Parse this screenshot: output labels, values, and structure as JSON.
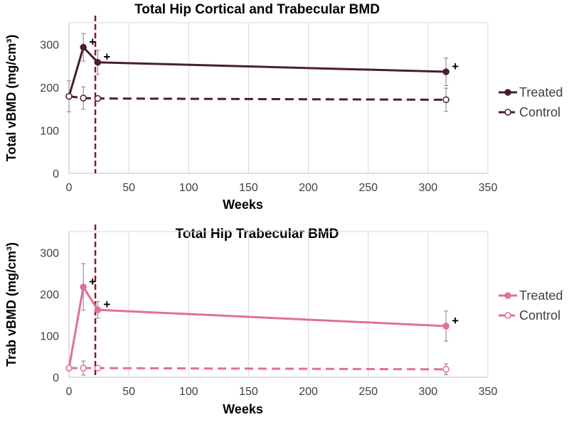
{
  "chart_data": [
    {
      "type": "line",
      "title": "Total Hip Cortical and Trabecular BMD",
      "xlabel": "Weeks",
      "ylabel": "Total vBMD (mg/cm³)",
      "xlim": [
        0,
        350
      ],
      "ylim": [
        0,
        350
      ],
      "xticks": [
        0,
        50,
        100,
        150,
        200,
        250,
        300,
        350
      ],
      "yticks": [
        0,
        100,
        200,
        300
      ],
      "vline_x": 22,
      "color": "#4a1f2a",
      "series": [
        {
          "name": "Treated",
          "style": "solid",
          "filled": true,
          "x": [
            0,
            12,
            24,
            315
          ],
          "y": [
            179,
            293,
            258,
            236
          ],
          "err": [
            null,
            32,
            28,
            32
          ],
          "marks": [
            false,
            true,
            true,
            true
          ]
        },
        {
          "name": "Control",
          "style": "dashed",
          "filled": false,
          "x": [
            0,
            12,
            24,
            315
          ],
          "y": [
            179,
            175,
            174,
            171
          ],
          "err": [
            36,
            26,
            null,
            27
          ],
          "marks": [
            false,
            false,
            false,
            false
          ]
        }
      ],
      "annotation_symbol": "+"
    },
    {
      "type": "line",
      "title": "Total Hip Trabecular BMD",
      "xlabel": "Weeks",
      "ylabel": "Trab vBMD (mg/cm³)",
      "xlim": [
        0,
        350
      ],
      "ylim": [
        0,
        350
      ],
      "xticks": [
        0,
        50,
        100,
        150,
        200,
        250,
        300,
        350
      ],
      "yticks": [
        0,
        100,
        200,
        300
      ],
      "vline_x": 22,
      "color": "#e0709b",
      "series": [
        {
          "name": "Treated",
          "style": "solid",
          "filled": true,
          "x": [
            0,
            12,
            24,
            315
          ],
          "y": [
            22,
            217,
            162,
            123
          ],
          "err": [
            null,
            56,
            20,
            36
          ],
          "marks": [
            false,
            true,
            true,
            true
          ]
        },
        {
          "name": "Control",
          "style": "dashed",
          "filled": false,
          "x": [
            0,
            12,
            24,
            315
          ],
          "y": [
            22,
            22,
            22,
            19
          ],
          "err": [
            null,
            17,
            null,
            13
          ],
          "marks": [
            false,
            false,
            false,
            false
          ]
        }
      ],
      "annotation_symbol": "+"
    }
  ],
  "colors": {
    "vline": "#8b1a1a",
    "grid": "#d9d9d9",
    "errorbar": "#808080"
  }
}
